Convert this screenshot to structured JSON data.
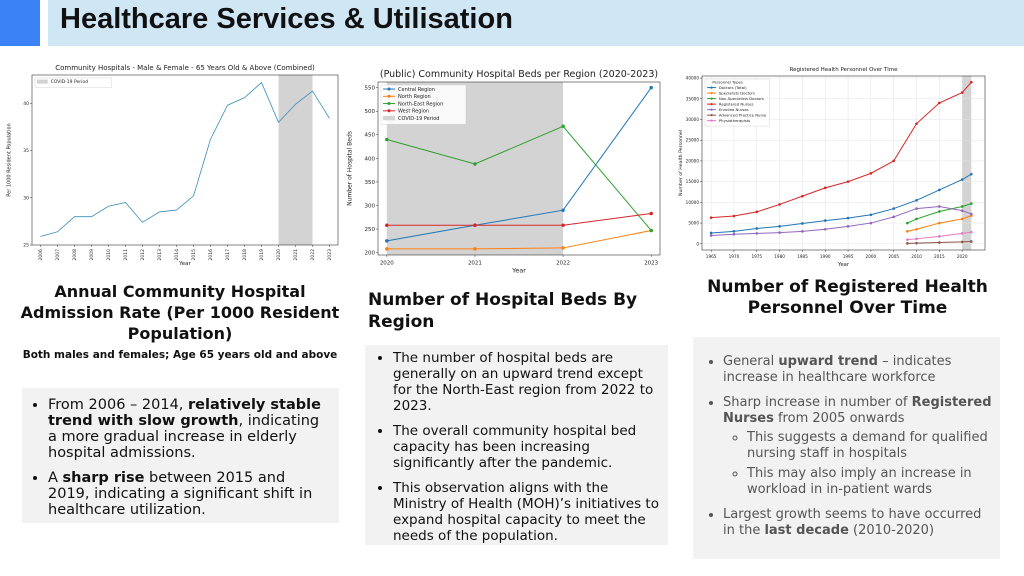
{
  "header": {
    "title": "Healthcare Services & Utilisation"
  },
  "chart_data": [
    {
      "type": "line",
      "title": "Community Hospitals - Male & Female - 65 Years Old & Above (Combined)",
      "xlabel": "Year",
      "ylabel": "Per 1000 Resident Population",
      "x": [
        2006,
        2007,
        2008,
        2009,
        2010,
        2011,
        2012,
        2013,
        2014,
        2015,
        2016,
        2017,
        2018,
        2019,
        2020,
        2021,
        2022,
        2023
      ],
      "values": [
        25.9,
        26.4,
        28,
        28,
        29.1,
        29.5,
        27.4,
        28.5,
        28.7,
        30.2,
        36.2,
        39.8,
        40.6,
        42.2,
        38,
        39.9,
        41.3,
        38.4
      ],
      "color": "#3a8fb7",
      "markers": false,
      "xlim": [
        2005.5,
        2023.5
      ],
      "ylim": [
        25,
        43
      ],
      "xticks": [
        2006,
        2007,
        2008,
        2009,
        2010,
        2011,
        2012,
        2013,
        2014,
        2015,
        2016,
        2017,
        2018,
        2019,
        2020,
        2021,
        2022,
        2023
      ],
      "yticks": [
        25,
        30,
        35,
        40
      ],
      "shade": {
        "x": [
          2020,
          2022
        ],
        "label": "COVID-19 Period",
        "color": "#d3d3d3"
      },
      "legend": "upper left",
      "grid": false
    },
    {
      "type": "line",
      "title": "(Public) Community Hospital Beds per Region (2020-2023)",
      "xlabel": "Year",
      "ylabel": "Number of Hospital Beds",
      "x": [
        2020,
        2021,
        2022,
        2023
      ],
      "series": [
        {
          "name": "Central Region",
          "color": "#1f77b4",
          "values": [
            225,
            258,
            290,
            550
          ]
        },
        {
          "name": "North Region",
          "color": "#ff7f0e",
          "values": [
            208,
            208,
            210,
            247
          ]
        },
        {
          "name": "North-East Region",
          "color": "#2ca02c",
          "values": [
            440,
            388,
            468,
            247
          ]
        },
        {
          "name": "West Region",
          "color": "#d62728",
          "values": [
            258,
            258,
            258,
            283
          ]
        }
      ],
      "markers": true,
      "xlim": [
        2019.9,
        2023.1
      ],
      "ylim": [
        195,
        562
      ],
      "xticks": [
        2020,
        2021,
        2022,
        2023
      ],
      "yticks": [
        200,
        250,
        300,
        350,
        400,
        450,
        500,
        550
      ],
      "shade": {
        "x": [
          2020,
          2022
        ],
        "label": "COVID-19 Period",
        "color": "#d3d3d3"
      },
      "legend": "upper left",
      "grid": false
    },
    {
      "type": "line",
      "title": "Registered Health Personnel Over Time",
      "xlabel": "Year",
      "ylabel": "Number of Health Personnel",
      "legend_title": "Personnel Types",
      "series": [
        {
          "name": "Doctors (Total)",
          "color": "#1f77b4",
          "x": [
            1965,
            1970,
            1975,
            1980,
            1985,
            1990,
            1995,
            2000,
            2005,
            2010,
            2015,
            2020,
            2022
          ],
          "values": [
            2600,
            3000,
            3700,
            4200,
            4900,
            5600,
            6200,
            7000,
            8500,
            10500,
            13000,
            15500,
            16800
          ]
        },
        {
          "name": "Specialists Doctors",
          "color": "#ff7f0e",
          "x": [
            2008,
            2010,
            2015,
            2020,
            2022
          ],
          "values": [
            3000,
            3500,
            5000,
            6000,
            6800
          ]
        },
        {
          "name": "Non-Specialists Doctors",
          "color": "#2ca02c",
          "x": [
            2008,
            2010,
            2015,
            2020,
            2022
          ],
          "values": [
            5000,
            6000,
            7800,
            9000,
            9700
          ]
        },
        {
          "name": "Registered Nurses",
          "color": "#d62728",
          "x": [
            1965,
            1970,
            1975,
            1980,
            1985,
            1990,
            1995,
            2000,
            2005,
            2010,
            2015,
            2020,
            2022
          ],
          "values": [
            6300,
            6700,
            7700,
            9500,
            11500,
            13500,
            15000,
            17000,
            20000,
            29000,
            34000,
            36500,
            39000
          ]
        },
        {
          "name": "Enrolled Nurses",
          "color": "#9467bd",
          "x": [
            1965,
            1970,
            1975,
            1980,
            1985,
            1990,
            1995,
            2000,
            2005,
            2010,
            2015,
            2020,
            2022
          ],
          "values": [
            2000,
            2300,
            2500,
            2700,
            3000,
            3500,
            4200,
            5000,
            6500,
            8500,
            9000,
            8000,
            7200
          ]
        },
        {
          "name": "Advanced Practice Nurse",
          "color": "#8c564b",
          "x": [
            2008,
            2010,
            2015,
            2020,
            2022
          ],
          "values": [
            100,
            150,
            300,
            450,
            550
          ]
        },
        {
          "name": "Physiotherapists",
          "color": "#e377c2",
          "x": [
            2008,
            2010,
            2015,
            2020,
            2022
          ],
          "values": [
            1000,
            1200,
            1800,
            2500,
            2800
          ]
        }
      ],
      "markers": true,
      "xlim": [
        1963,
        2025
      ],
      "ylim": [
        -1500,
        40500
      ],
      "xticks": [
        1965,
        1970,
        1975,
        1980,
        1985,
        1990,
        1995,
        2000,
        2005,
        2010,
        2015,
        2020
      ],
      "yticks": [
        0,
        5000,
        10000,
        15000,
        20000,
        25000,
        30000,
        35000,
        40000
      ],
      "shade": {
        "x": [
          2020,
          2022
        ],
        "color": "#d3d3d3"
      },
      "legend": "upper left",
      "grid": true
    }
  ],
  "panels": [
    {
      "caption": "Annual Community Hospital Admission Rate (Per 1000 Resident Population)",
      "subtitle": "Both males and females; Age 65 years old and above",
      "bullets": [
        {
          "runs": [
            {
              "text": "From 2006 – 2014, ",
              "bold": false
            },
            {
              "text": "relatively stable trend with slow growth",
              "bold": true
            },
            {
              "text": ", indicating a more gradual increase in elderly hospital admissions.",
              "bold": false
            }
          ]
        },
        {
          "runs": [
            {
              "text": "A ",
              "bold": false
            },
            {
              "text": "sharp rise",
              "bold": true
            },
            {
              "text": " between 2015 and 2019, indicating a significant shift in healthcare utilization.",
              "bold": false
            }
          ]
        }
      ]
    },
    {
      "caption": "Number of Hospital Beds By Region",
      "bullets": [
        {
          "runs": [
            {
              "text": "The number of hospital beds are generally on an upward trend except for the North-East region from 2022 to 2023.",
              "bold": false
            }
          ]
        },
        {
          "runs": [
            {
              "text": "The overall community hospital bed capacity has been increasing significantly after the pandemic.",
              "bold": false
            }
          ]
        },
        {
          "runs": [
            {
              "text": "This observation aligns with the Ministry of Health (MOH)’s initiatives to expand hospital capacity to meet the needs of the population.",
              "bold": false
            }
          ]
        }
      ]
    },
    {
      "caption": "Number of Registered Health Personnel Over Time",
      "bullets": [
        {
          "runs": [
            {
              "text": "General ",
              "bold": false
            },
            {
              "text": "upward trend",
              "bold": true
            },
            {
              "text": " – indicates increase in healthcare workforce",
              "bold": false
            }
          ]
        },
        {
          "runs": [
            {
              "text": "Sharp increase in number of ",
              "bold": false
            },
            {
              "text": "Registered Nurses",
              "bold": true
            },
            {
              "text": " from 2005 onwards",
              "bold": false
            }
          ],
          "sub": [
            {
              "runs": [
                {
                  "text": "This suggests a demand for qualified nursing staff in hospitals",
                  "bold": false
                }
              ]
            },
            {
              "runs": [
                {
                  "text": "This may also imply an increase in workload in in-patient wards",
                  "bold": false
                }
              ]
            }
          ]
        },
        {
          "runs": [
            {
              "text": "Largest growth seems to have occurred in the ",
              "bold": false
            },
            {
              "text": "last decade",
              "bold": true
            },
            {
              "text": " (2010-2020)",
              "bold": false
            }
          ]
        }
      ]
    }
  ]
}
